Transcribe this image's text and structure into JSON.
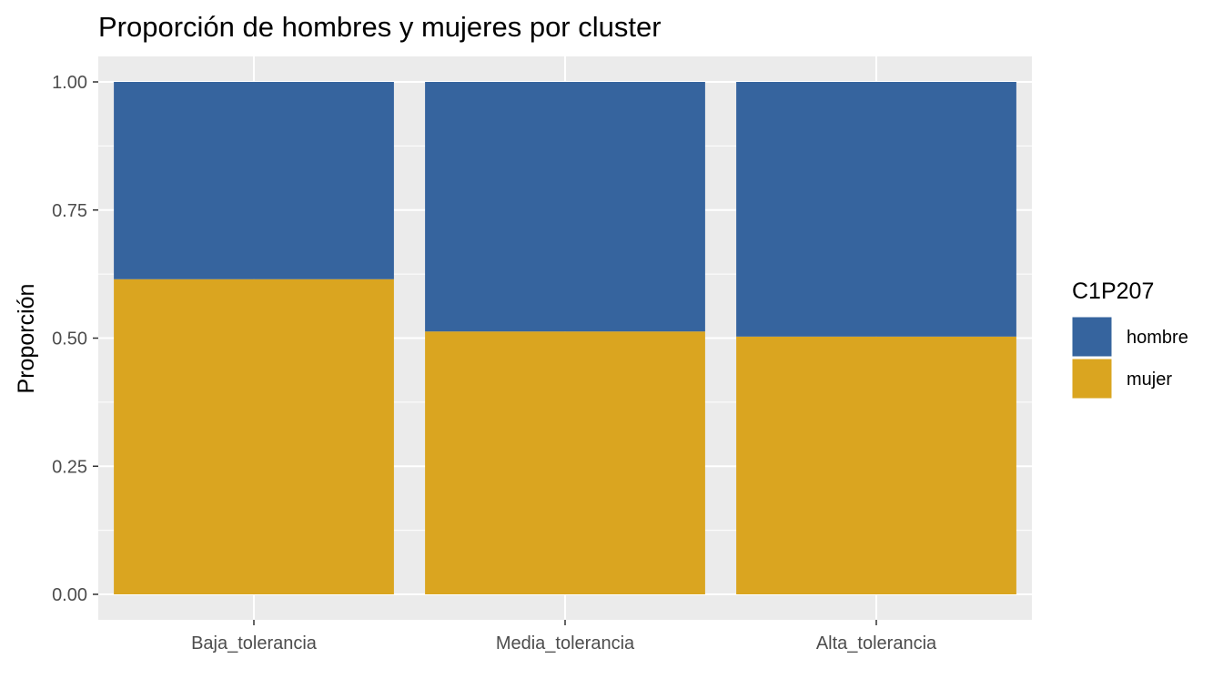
{
  "chart_data": {
    "type": "bar",
    "stacked": true,
    "title": "Proporción de hombres y mujeres por cluster",
    "xlabel": "",
    "ylabel": "Proporción",
    "ylim": [
      0,
      1
    ],
    "yticks": [
      "0.00",
      "0.25",
      "0.50",
      "0.75",
      "1.00"
    ],
    "yticks_values": [
      0,
      0.25,
      0.5,
      0.75,
      1.0
    ],
    "categories": [
      "Baja_tolerancia",
      "Media_tolerancia",
      "Alta_tolerancia"
    ],
    "series": [
      {
        "name": "mujer",
        "color": "#DAA520",
        "values": [
          0.615,
          0.513,
          0.503
        ]
      },
      {
        "name": "hombre",
        "color": "#36649E",
        "values": [
          0.385,
          0.487,
          0.497
        ]
      }
    ],
    "legend": {
      "title": "C1P207",
      "position": "right",
      "entries": [
        {
          "label": "hombre",
          "color": "#36649E"
        },
        {
          "label": "mujer",
          "color": "#DAA520"
        }
      ]
    },
    "grid": true,
    "panel_background": "#EBEBEB"
  }
}
